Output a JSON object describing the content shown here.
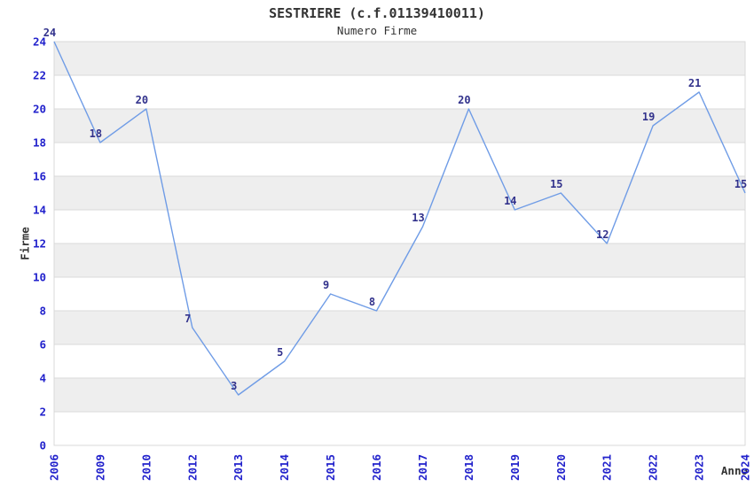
{
  "header": {
    "title": "SESTRIERE (c.f.01139410011)",
    "subtitle": "Numero Firme"
  },
  "chart_data": {
    "type": "line",
    "title": "SESTRIERE (c.f.01139410011)",
    "subtitle": "Numero Firme",
    "xlabel": "Anno",
    "ylabel": "Firme",
    "categories": [
      "2006",
      "2009",
      "2010",
      "2012",
      "2013",
      "2014",
      "2015",
      "2016",
      "2017",
      "2018",
      "2019",
      "2020",
      "2021",
      "2022",
      "2023",
      "2024"
    ],
    "values": [
      24,
      18,
      20,
      7,
      3,
      5,
      9,
      8,
      13,
      20,
      14,
      15,
      12,
      19,
      21,
      15
    ],
    "ylim": [
      0,
      24
    ],
    "ytick_step": 2,
    "yticks": [
      0,
      2,
      4,
      6,
      8,
      10,
      12,
      14,
      16,
      18,
      20,
      22,
      24
    ],
    "grid": "horizontal-alternating-bands",
    "legend_position": "none",
    "x_tick_rotation": -90,
    "colors": {
      "line": "#6f9ce6",
      "tick_label": "#2222cc",
      "data_label": "#32328c",
      "band": "#eeeeee",
      "gridline": "#d9d9d9",
      "text": "#333333",
      "background": "#ffffff"
    }
  }
}
